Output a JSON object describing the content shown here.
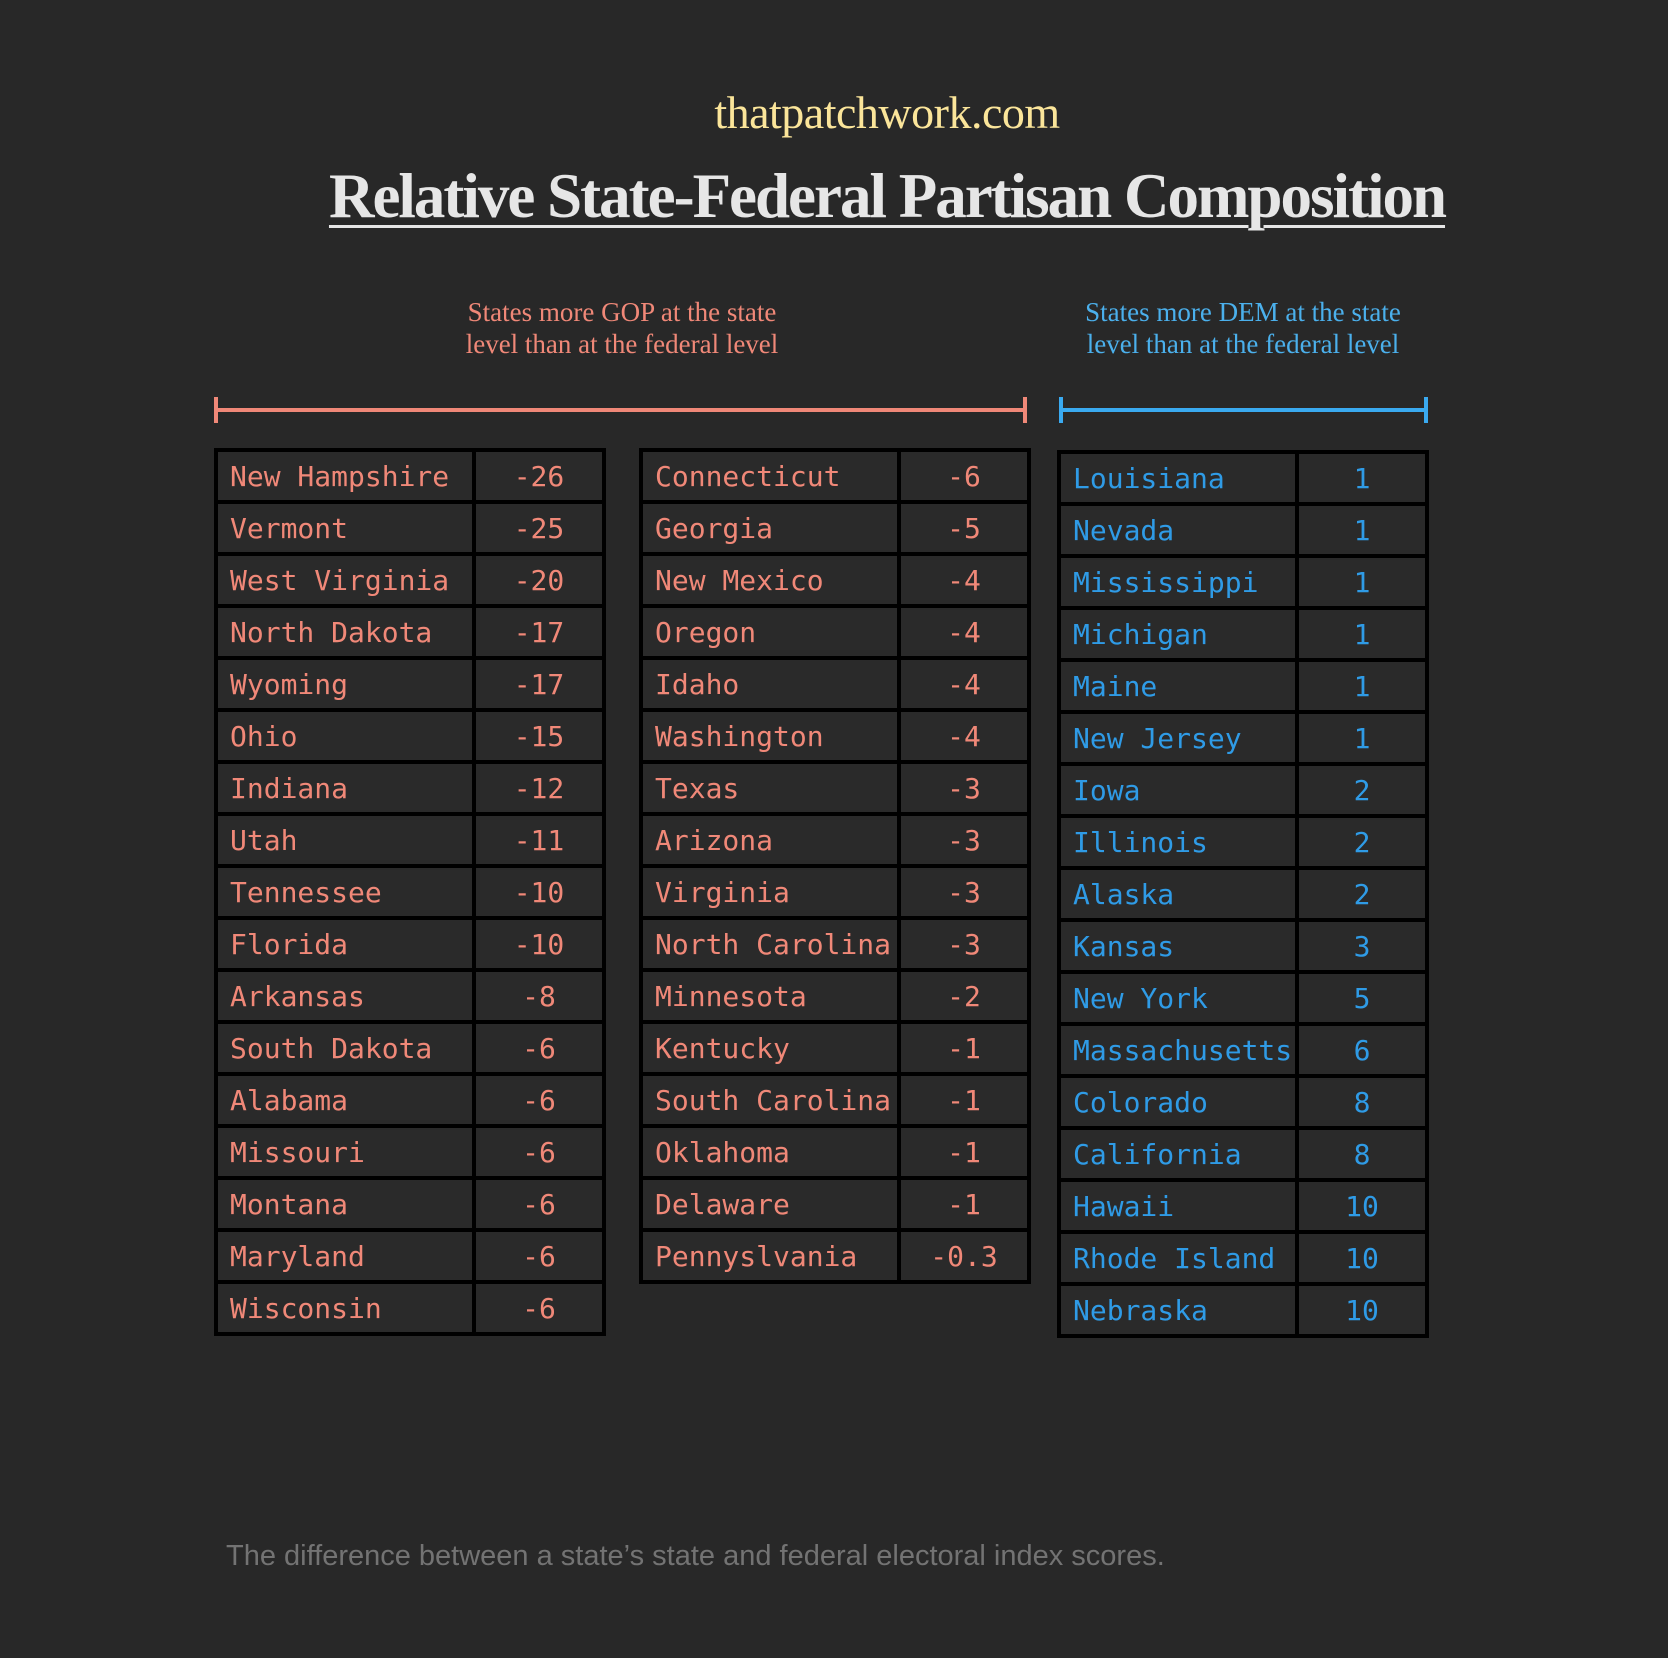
{
  "site": "thatpatchwork.com",
  "title": "Relative State-Federal Partisan Composition",
  "footnote": "The difference between a state’s state and federal electoral index scores.",
  "colors": {
    "background": "#282828",
    "gop": "#f08878",
    "dem": "#2f9be6",
    "site": "#fbe59a"
  },
  "chart_data": {
    "type": "table",
    "title": "Relative State-Federal Partisan Composition",
    "groups": [
      {
        "heading": "States more GOP at the state level than at the federal level",
        "heading_lines": [
          "States more GOP at the state",
          "level than at the federal level"
        ],
        "rows": [
          [
            "New Hampshire",
            "-26"
          ],
          [
            "Vermont",
            "-25"
          ],
          [
            "West Virginia",
            "-20"
          ],
          [
            "North Dakota",
            "-17"
          ],
          [
            "Wyoming",
            "-17"
          ],
          [
            "Ohio",
            "-15"
          ],
          [
            "Indiana",
            "-12"
          ],
          [
            "Utah",
            "-11"
          ],
          [
            "Tennessee",
            "-10"
          ],
          [
            "Florida",
            "-10"
          ],
          [
            "Arkansas",
            "-8"
          ],
          [
            "South Dakota",
            "-6"
          ],
          [
            "Alabama",
            "-6"
          ],
          [
            "Missouri",
            "-6"
          ],
          [
            "Montana",
            "-6"
          ],
          [
            "Maryland",
            "-6"
          ],
          [
            "Wisconsin",
            "-6"
          ],
          [
            "Connecticut",
            "-6"
          ],
          [
            "Georgia",
            "-5"
          ],
          [
            "New Mexico",
            "-4"
          ],
          [
            "Oregon",
            "-4"
          ],
          [
            "Idaho",
            "-4"
          ],
          [
            "Washington",
            "-4"
          ],
          [
            "Texas",
            "-3"
          ],
          [
            "Arizona",
            "-3"
          ],
          [
            "Virginia",
            "-3"
          ],
          [
            "North Carolina",
            "-3"
          ],
          [
            "Minnesota",
            "-2"
          ],
          [
            "Kentucky",
            "-1"
          ],
          [
            "South Carolina",
            "-1"
          ],
          [
            "Oklahoma",
            "-1"
          ],
          [
            "Delaware",
            "-1"
          ],
          [
            "Pennyslvania",
            "-0.3"
          ]
        ]
      },
      {
        "heading": "States more DEM at the state level than at the federal level",
        "heading_lines": [
          "States more DEM at the state",
          "level than at the federal level"
        ],
        "rows": [
          [
            "Louisiana",
            "1"
          ],
          [
            "Nevada",
            "1"
          ],
          [
            "Mississippi",
            "1"
          ],
          [
            "Michigan",
            "1"
          ],
          [
            "Maine",
            "1"
          ],
          [
            "New Jersey",
            "1"
          ],
          [
            "Iowa",
            "2"
          ],
          [
            "Illinois",
            "2"
          ],
          [
            "Alaska",
            "2"
          ],
          [
            "Kansas",
            "3"
          ],
          [
            "New York",
            "5"
          ],
          [
            "Massachusetts",
            "6"
          ],
          [
            "Colorado",
            "8"
          ],
          [
            "California",
            "8"
          ],
          [
            "Hawaii",
            "10"
          ],
          [
            "Rhode Island",
            "10"
          ],
          [
            "Nebraska",
            "10"
          ]
        ]
      }
    ]
  }
}
